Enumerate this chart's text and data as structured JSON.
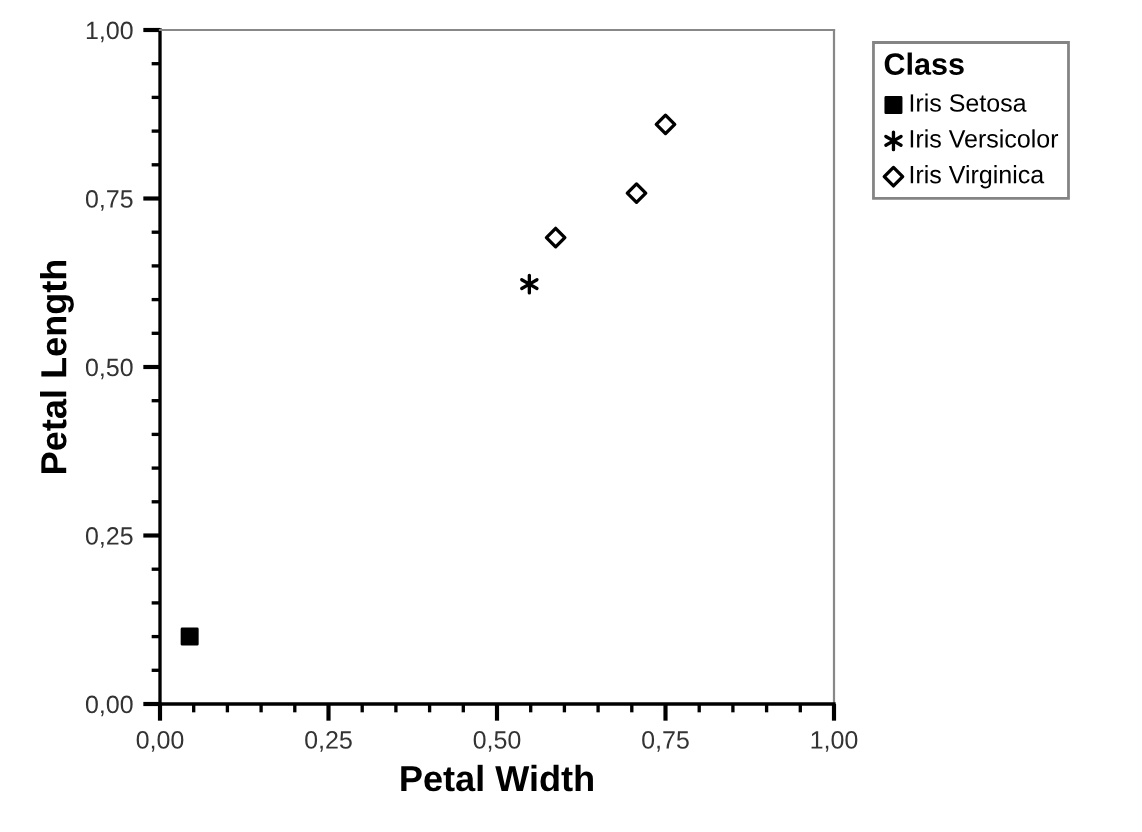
{
  "chart_data": {
    "type": "scatter",
    "xlabel": "Petal Width",
    "ylabel": "Petal Length",
    "legend_title": "Class",
    "legend": "right",
    "xlim": [
      0,
      1
    ],
    "ylim": [
      0,
      1
    ],
    "xticks": [
      {
        "value": 0,
        "label": "0,00"
      },
      {
        "value": 0.25,
        "label": "0,25"
      },
      {
        "value": 0.5,
        "label": "0,50"
      },
      {
        "value": 0.75,
        "label": "0,75"
      },
      {
        "value": 1,
        "label": "1,00"
      }
    ],
    "yticks": [
      {
        "value": 0,
        "label": "0,00"
      },
      {
        "value": 0.25,
        "label": "0,25"
      },
      {
        "value": 0.5,
        "label": "0,50"
      },
      {
        "value": 0.75,
        "label": "0,75"
      },
      {
        "value": 1,
        "label": "1,00"
      }
    ],
    "grid": false,
    "series": [
      {
        "name": "Iris Setosa",
        "color": "#000000",
        "marker": "square",
        "x": [
          0.044
        ],
        "values": [
          0.1
        ]
      },
      {
        "name": "Iris Versicolor",
        "color": "#000000",
        "marker": "cross",
        "x": [
          0.548
        ],
        "values": [
          0.623
        ]
      },
      {
        "name": "Iris Virginica",
        "color": "#000000",
        "marker": "diamond",
        "x": [
          0.587,
          0.707,
          0.75
        ],
        "values": [
          0.692,
          0.758,
          0.86
        ]
      }
    ]
  }
}
